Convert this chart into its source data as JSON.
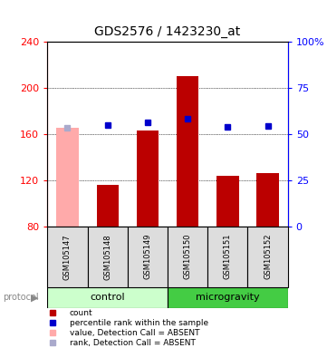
{
  "title": "GDS2576 / 1423230_at",
  "samples": [
    "GSM105147",
    "GSM105148",
    "GSM105149",
    "GSM105150",
    "GSM105151",
    "GSM105152"
  ],
  "bar_values": [
    null,
    116,
    163,
    210,
    124,
    126
  ],
  "bar_absent_values": [
    165,
    null,
    null,
    null,
    null,
    null
  ],
  "blue_dots": [
    165,
    168,
    170,
    173,
    166,
    167
  ],
  "blue_dot_absent": [
    true,
    false,
    false,
    false,
    false,
    false
  ],
  "ylim_left": [
    80,
    240
  ],
  "yticks_left": [
    80,
    120,
    160,
    200,
    240
  ],
  "yticks_right": [
    0,
    25,
    50,
    75,
    100
  ],
  "bar_color": "#bb0000",
  "bar_absent_color": "#ffaaaa",
  "dot_color": "#0000cc",
  "dot_absent_color": "#aaaacc",
  "control_bg_light": "#ccffcc",
  "control_bg_dark": "#44cc44",
  "microgravity_bg": "#44cc44",
  "sample_bg": "#dddddd",
  "legend_items": [
    {
      "color": "#bb0000",
      "label": "count"
    },
    {
      "color": "#0000cc",
      "label": "percentile rank within the sample"
    },
    {
      "color": "#ffaaaa",
      "label": "value, Detection Call = ABSENT"
    },
    {
      "color": "#aaaacc",
      "label": "rank, Detection Call = ABSENT"
    }
  ],
  "control_indices": [
    0,
    1,
    2
  ],
  "microgravity_indices": [
    3,
    4,
    5
  ]
}
